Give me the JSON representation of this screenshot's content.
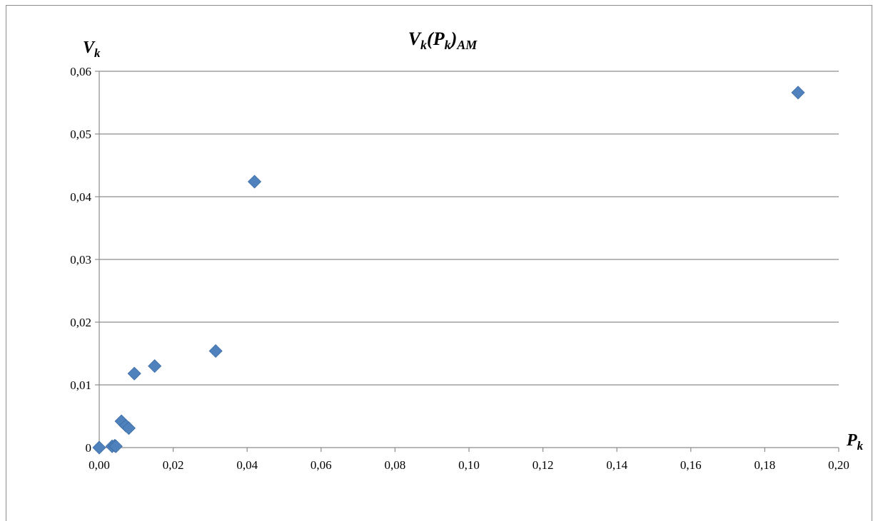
{
  "chart_data": {
    "type": "scatter",
    "title": {
      "main": "V",
      "sub1": "k",
      "mid": "(P",
      "sub2": "k",
      "close": ")",
      "sub3": "AM"
    },
    "ylabel": {
      "main": "V",
      "sub": "k"
    },
    "xlabel": {
      "main": "P",
      "sub": "k"
    },
    "xlim": [
      0,
      0.2
    ],
    "ylim": [
      0,
      0.06
    ],
    "x_ticks": [
      "0,00",
      "0,02",
      "0,04",
      "0,06",
      "0,08",
      "0,10",
      "0,12",
      "0,14",
      "0,16",
      "0,18",
      "0,20"
    ],
    "y_ticks": [
      "0",
      "0,01",
      "0,02",
      "0,03",
      "0,04",
      "0,05",
      "0,06"
    ],
    "grid": "horizontal",
    "marker": "diamond",
    "series": [
      {
        "color": "#4f81bd",
        "points": [
          {
            "x": 0.0,
            "y": 0.0
          },
          {
            "x": 0.0035,
            "y": 0.0002
          },
          {
            "x": 0.0042,
            "y": 0.0003
          },
          {
            "x": 0.0045,
            "y": 0.0002
          },
          {
            "x": 0.006,
            "y": 0.0042
          },
          {
            "x": 0.0072,
            "y": 0.0035
          },
          {
            "x": 0.008,
            "y": 0.0031
          },
          {
            "x": 0.0095,
            "y": 0.0118
          },
          {
            "x": 0.015,
            "y": 0.013
          },
          {
            "x": 0.0315,
            "y": 0.0154
          },
          {
            "x": 0.042,
            "y": 0.0424
          },
          {
            "x": 0.189,
            "y": 0.0566
          }
        ]
      }
    ]
  }
}
